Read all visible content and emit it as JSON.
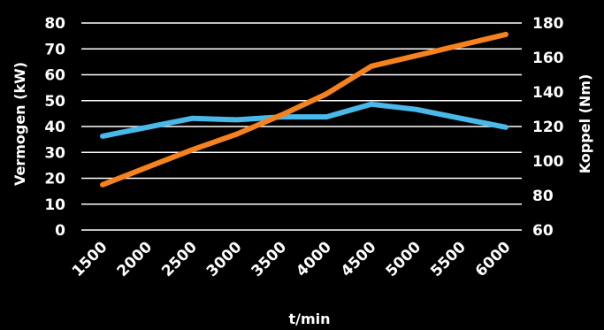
{
  "chart_data": {
    "type": "line",
    "title": "",
    "xlabel": "t/min",
    "ylabel_left": "Vermogen (kW)",
    "ylabel_right": "Koppel (Nm)",
    "x": [
      1500,
      2000,
      2500,
      3000,
      3500,
      4000,
      4500,
      5000,
      5500,
      6000
    ],
    "x_tick_labels": [
      "1500",
      "2000",
      "2500",
      "3000",
      "3500",
      "4000",
      "4500",
      "5000",
      "5500",
      "6000"
    ],
    "ylim_left": [
      0,
      80
    ],
    "yticks_left": [
      "0",
      "10",
      "20",
      "30",
      "40",
      "50",
      "60",
      "70",
      "80"
    ],
    "ylim_right": [
      60,
      180
    ],
    "yticks_right": [
      "60",
      "80",
      "100",
      "120",
      "140",
      "160",
      "180"
    ],
    "grid": true,
    "legend": "none",
    "series": [
      {
        "axis": "right",
        "color": "#4ab8e8",
        "values": [
          114.4,
          119.6,
          124.7,
          123.9,
          125.6,
          125.6,
          132.9,
          129.9,
          124.7,
          119.6
        ]
      },
      {
        "axis": "left",
        "color": "#f5821f",
        "values": [
          17.5,
          24.3,
          31.0,
          37.1,
          44.5,
          52.6,
          63.3,
          67.4,
          71.5,
          75.6
        ]
      }
    ]
  }
}
